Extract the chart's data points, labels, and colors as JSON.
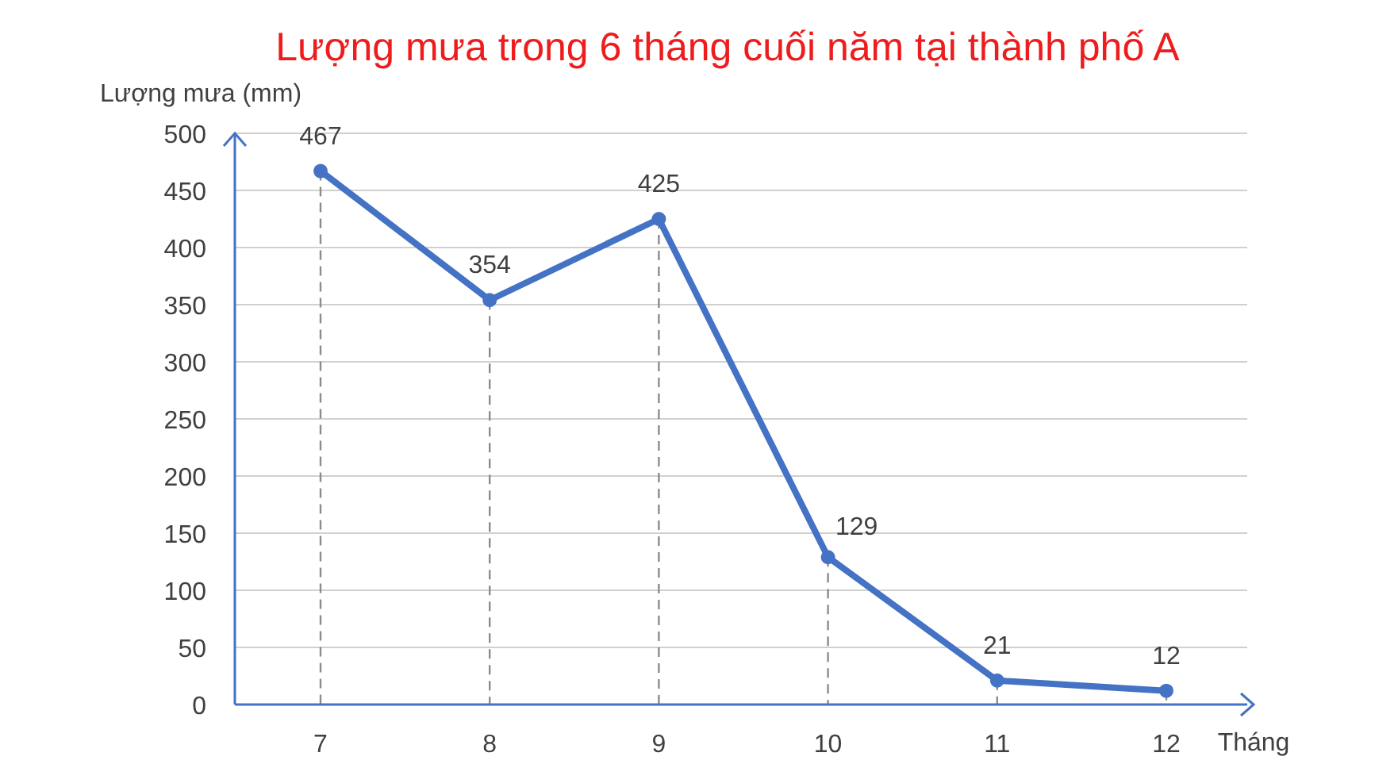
{
  "chart_data": {
    "type": "line",
    "title": "Lượng mưa trong 6 tháng cuối năm tại thành phố A",
    "xlabel": "Tháng",
    "ylabel": "Lượng mưa  (mm)",
    "categories": [
      "7",
      "8",
      "9",
      "10",
      "11",
      "12"
    ],
    "series": [
      {
        "color": "#4472c4",
        "values": [
          467,
          354,
          425,
          129,
          21,
          12
        ]
      }
    ],
    "ylim": [
      0,
      500
    ],
    "yticks": [
      0,
      50,
      100,
      150,
      200,
      250,
      300,
      350,
      400,
      450,
      500
    ],
    "grid": true,
    "marker": "circle",
    "data_labels": true
  }
}
